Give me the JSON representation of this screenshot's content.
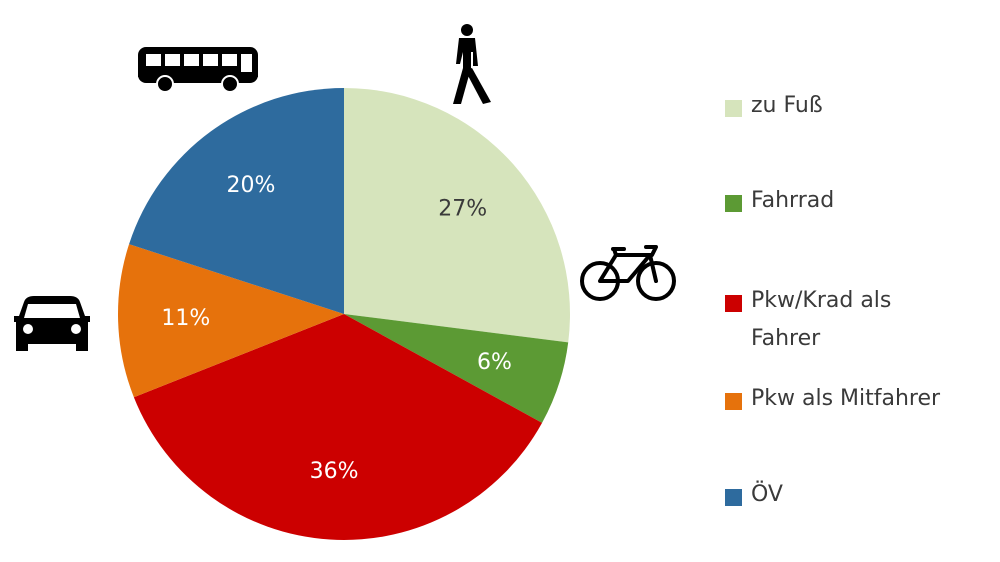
{
  "chart_data": {
    "type": "pie",
    "title": "",
    "series": [
      {
        "categories": [
          "zu Fuß",
          "Fahrrad",
          "Pkw/Krad als Fahrer",
          "Pkw als Mitfahrer",
          "ÖV"
        ],
        "values": [
          27,
          6,
          36,
          11,
          20
        ],
        "labels": [
          "27%",
          "6%",
          "36%",
          "11%",
          "20%"
        ],
        "colors": [
          "#d6e4bc",
          "#5c9a34",
          "#cc0000",
          "#e6720c",
          "#2e6b9e"
        ],
        "label_colors": [
          "#3a3a3a",
          "#ffffff",
          "#ffffff",
          "#ffffff",
          "#ffffff"
        ]
      }
    ],
    "legend": {
      "placement": "right",
      "items": [
        {
          "label": "zu Fuß",
          "color": "#d6e4bc"
        },
        {
          "label": "Fahrrad",
          "color": "#5c9a34"
        },
        {
          "label": "Pkw/Krad als Fahrer",
          "color": "#cc0000"
        },
        {
          "label": "Pkw als Mitfahrer",
          "color": "#e6720c"
        },
        {
          "label": "ÖV",
          "color": "#2e6b9e"
        }
      ]
    },
    "icons": [
      "pedestrian-icon",
      "bicycle-icon",
      "car-icon",
      "bus-icon"
    ]
  }
}
